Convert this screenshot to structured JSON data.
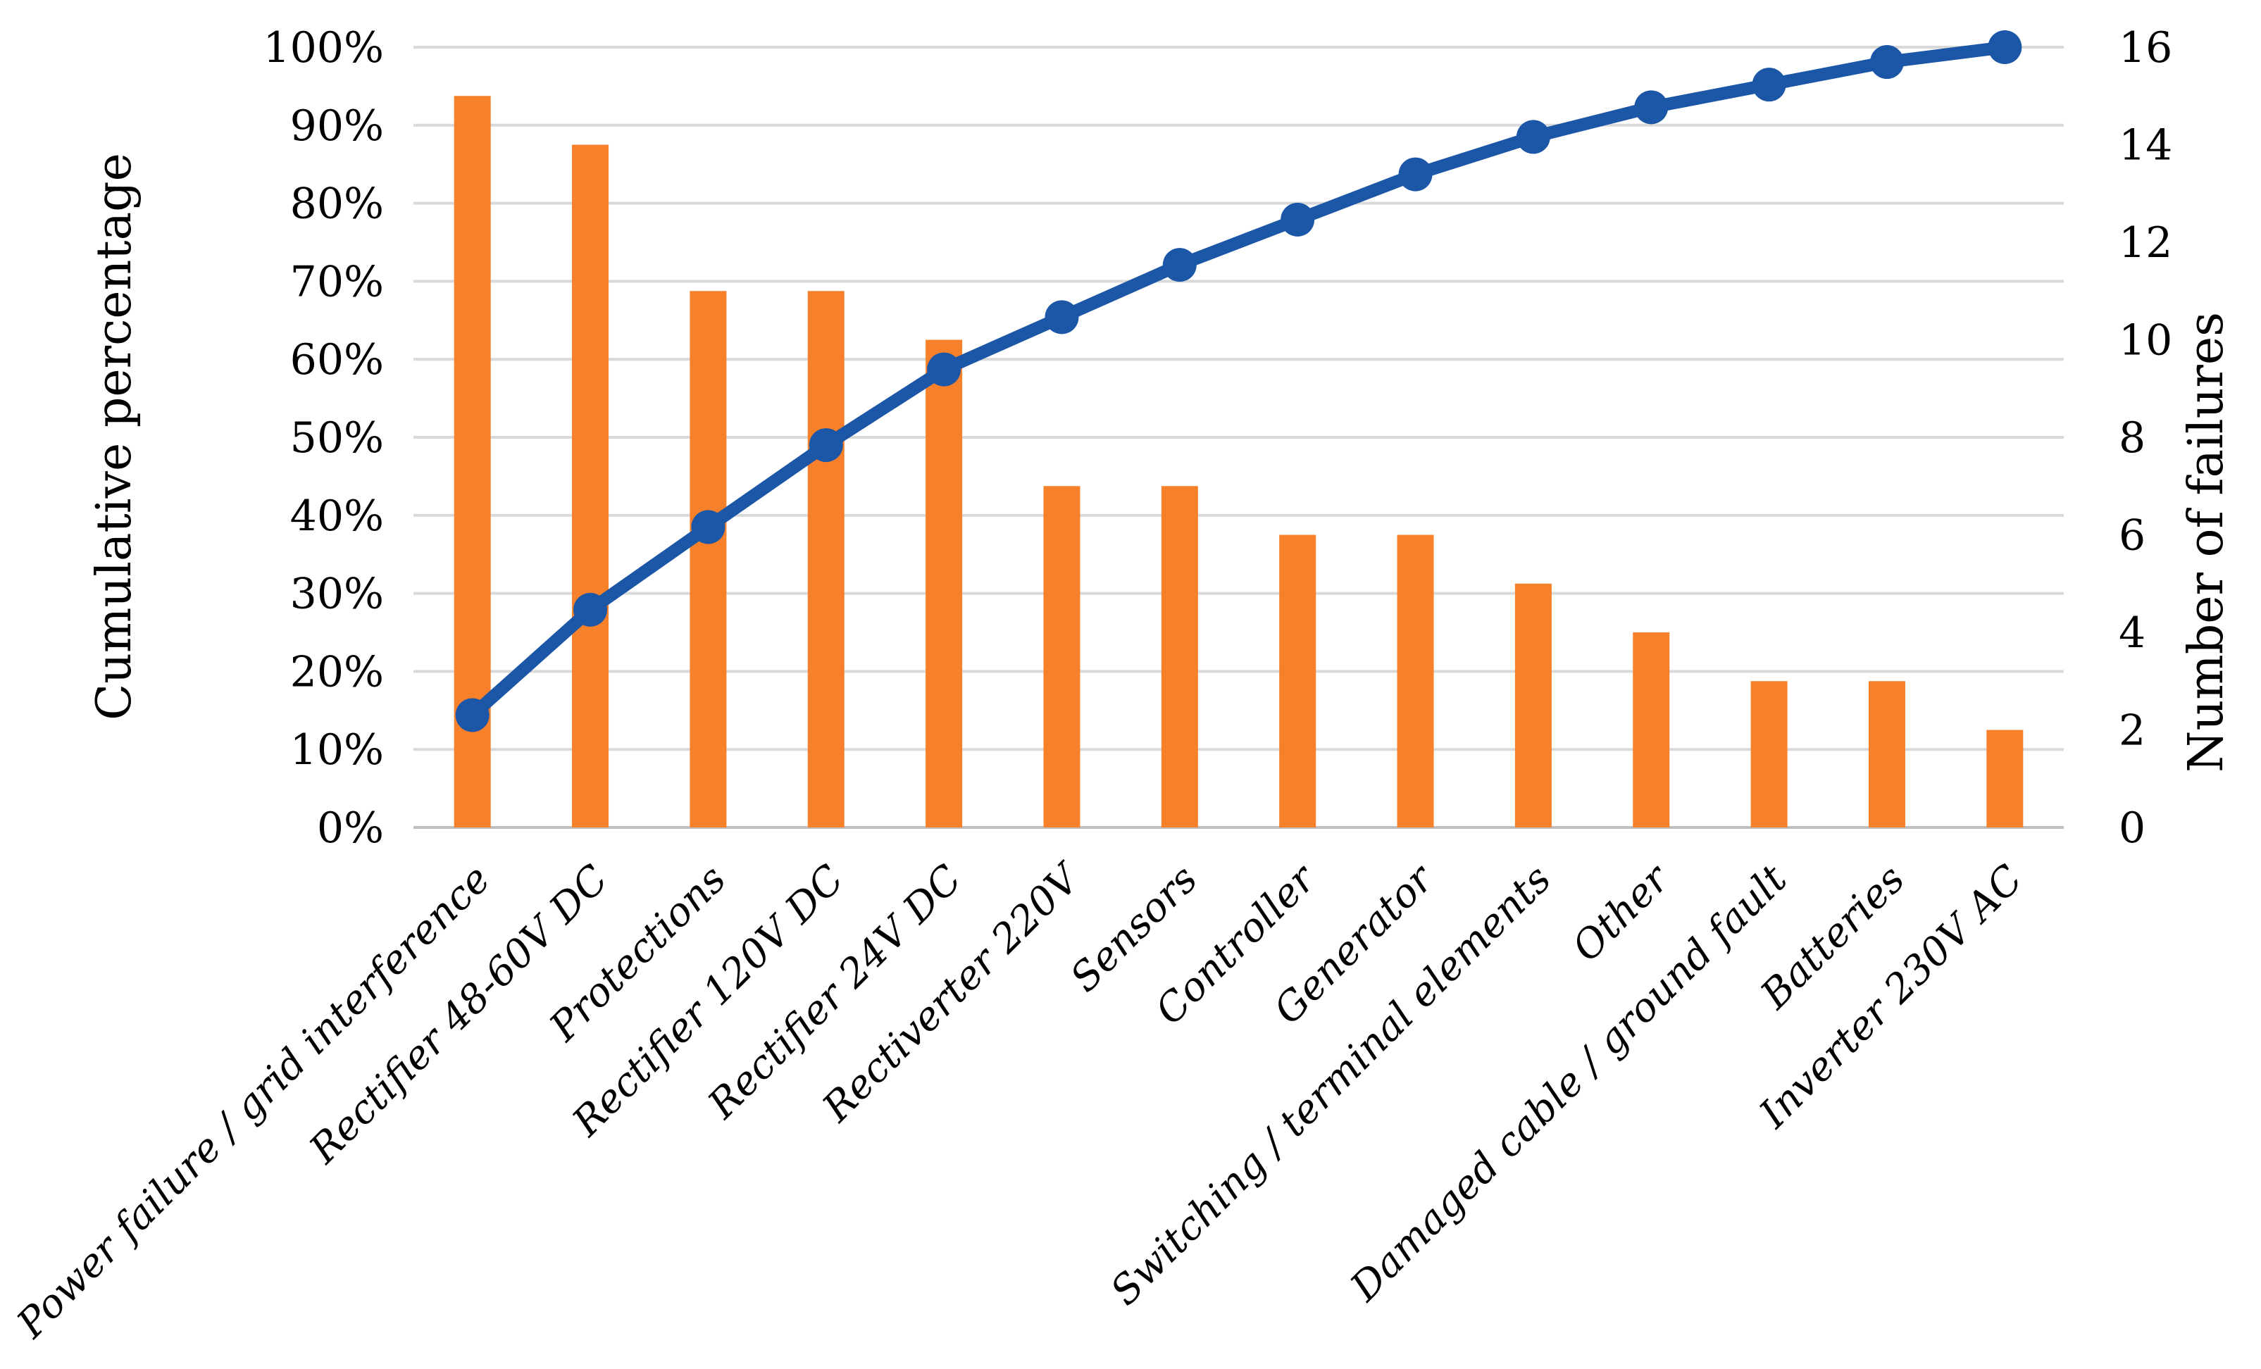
{
  "chart_data": {
    "type": "pareto_combo_bar_line",
    "categories": [
      "Power failure / grid interference",
      "Rectifier 48-60V DC",
      "Protections",
      "Rectifier 120V DC",
      "Rectifier 24V DC",
      "Rectiverter 220V",
      "Sensors",
      "Controller",
      "Generator",
      "Switching / terminal elements",
      "Other",
      "Damaged cable / ground fault",
      "Batteries",
      "Inverter 230V AC"
    ],
    "series": [
      {
        "name": "Number of failures",
        "chart_type": "bar",
        "axis": "right",
        "values": [
          15,
          14,
          11,
          11,
          10,
          7,
          7,
          6,
          6,
          5,
          4,
          3,
          3,
          2
        ]
      },
      {
        "name": "Cumulative percentage",
        "chart_type": "line",
        "axis": "left",
        "values_percent": [
          14.4,
          27.9,
          38.5,
          49.0,
          58.7,
          65.4,
          72.1,
          77.9,
          83.7,
          88.5,
          92.3,
          95.2,
          98.1,
          100.0
        ]
      }
    ],
    "left_axis": {
      "title": "Cumulative percentage",
      "min": 0,
      "max": 100,
      "step": 10,
      "tick_labels": [
        "0%",
        "10%",
        "20%",
        "30%",
        "40%",
        "50%",
        "60%",
        "70%",
        "80%",
        "90%",
        "100%"
      ]
    },
    "right_axis": {
      "title": "Number of failures",
      "min": 0,
      "max": 16,
      "step": 2,
      "tick_labels": [
        "0",
        "2",
        "4",
        "6",
        "8",
        "10",
        "12",
        "14",
        "16"
      ]
    },
    "grid": {
      "horizontal": true,
      "vertical": false
    },
    "legend_position": "none",
    "colors": {
      "bar": "#F7802A",
      "line": "#1B56A7",
      "gridline": "#D9D9D9",
      "baseline": "#BFBFBF",
      "text": "#000000",
      "background": "#FFFFFF"
    }
  }
}
